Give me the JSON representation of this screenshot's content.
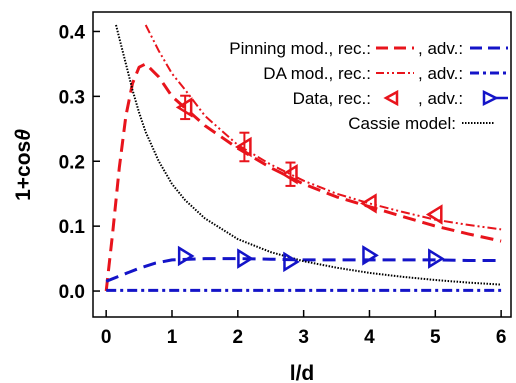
{
  "chart_data": {
    "type": "line",
    "xlabel": "l/d",
    "ylabel_main": "1+cos",
    "ylabel_symbol": "θ",
    "xlim": [
      -0.2,
      6.15
    ],
    "ylim": [
      -0.04,
      0.43
    ],
    "x_ticks": [
      0,
      1,
      2,
      3,
      4,
      5,
      6
    ],
    "y_ticks": [
      0.0,
      0.1,
      0.2,
      0.3,
      0.4
    ],
    "y_tick_labels": [
      "0.0",
      "0.1",
      "0.2",
      "0.3",
      "0.4"
    ],
    "grid": false,
    "legend_position": "top-right",
    "legend": {
      "pinning": {
        "label": "Pinning mod., rec.:",
        "label2": ", adv.:"
      },
      "da": {
        "label": "DA mod., rec.:",
        "label2": ", adv.:"
      },
      "data": {
        "label": "Data, rec.:",
        "label2": ", adv.:"
      },
      "cassie": {
        "label": "Cassie model:"
      }
    },
    "colors": {
      "receding": "#e8141c",
      "advancing": "#1414c8",
      "cassie": "#000000"
    },
    "series": [
      {
        "key": "pinning-rec",
        "style": "dashed",
        "color": "receding",
        "x": [
          0.0,
          0.1,
          0.2,
          0.3,
          0.4,
          0.5,
          0.6,
          0.8,
          1.0,
          1.5,
          2.0,
          2.5,
          3.0,
          3.5,
          4.0,
          4.5,
          5.0,
          5.5,
          6.0
        ],
        "y": [
          0.0,
          0.09,
          0.19,
          0.27,
          0.32,
          0.345,
          0.35,
          0.33,
          0.3,
          0.255,
          0.22,
          0.19,
          0.165,
          0.145,
          0.13,
          0.115,
          0.1,
          0.088,
          0.077
        ]
      },
      {
        "key": "pinning-adv",
        "style": "dashed",
        "color": "advancing",
        "x": [
          0.0,
          0.25,
          0.5,
          0.75,
          1.0,
          1.5,
          2.0,
          2.5,
          3.0,
          3.5,
          4.0,
          4.5,
          5.0,
          5.5,
          6.0
        ],
        "y": [
          0.015,
          0.025,
          0.035,
          0.043,
          0.048,
          0.05,
          0.05,
          0.049,
          0.048,
          0.048,
          0.048,
          0.048,
          0.048,
          0.047,
          0.047
        ]
      },
      {
        "key": "da-rec",
        "style": "dashdotdot",
        "color": "receding",
        "x": [
          0.6,
          0.8,
          1.0,
          1.2,
          1.5,
          2.0,
          2.5,
          3.0,
          3.5,
          4.0,
          4.5,
          5.0,
          5.5,
          6.0
        ],
        "y": [
          0.41,
          0.37,
          0.335,
          0.31,
          0.27,
          0.225,
          0.195,
          0.17,
          0.15,
          0.135,
          0.122,
          0.11,
          0.102,
          0.095
        ]
      },
      {
        "key": "da-adv",
        "style": "dashdot",
        "color": "advancing",
        "x": [
          0.0,
          6.0
        ],
        "y": [
          0.001,
          0.001
        ]
      },
      {
        "key": "cassie",
        "style": "dotted",
        "color": "cassie",
        "x": [
          0.15,
          0.2,
          0.3,
          0.4,
          0.5,
          0.6,
          0.8,
          1.0,
          1.2,
          1.5,
          2.0,
          2.5,
          3.0,
          3.5,
          4.0,
          4.5,
          5.0,
          5.5,
          6.0
        ],
        "y": [
          0.41,
          0.39,
          0.35,
          0.31,
          0.275,
          0.245,
          0.2,
          0.165,
          0.14,
          0.112,
          0.08,
          0.06,
          0.046,
          0.036,
          0.028,
          0.022,
          0.017,
          0.013,
          0.01
        ]
      }
    ],
    "data_points": {
      "receding": [
        {
          "x": 1.2,
          "y": 0.283,
          "err": 0.018
        },
        {
          "x": 2.1,
          "y": 0.222,
          "err": 0.022
        },
        {
          "x": 2.8,
          "y": 0.18,
          "err": 0.018
        },
        {
          "x": 4.0,
          "y": 0.135,
          "err": 0.0
        },
        {
          "x": 5.0,
          "y": 0.118,
          "err": 0.0
        }
      ],
      "advancing": [
        {
          "x": 1.2,
          "y": 0.054
        },
        {
          "x": 2.1,
          "y": 0.05
        },
        {
          "x": 2.8,
          "y": 0.045
        },
        {
          "x": 4.0,
          "y": 0.055
        },
        {
          "x": 5.0,
          "y": 0.05
        }
      ]
    }
  }
}
